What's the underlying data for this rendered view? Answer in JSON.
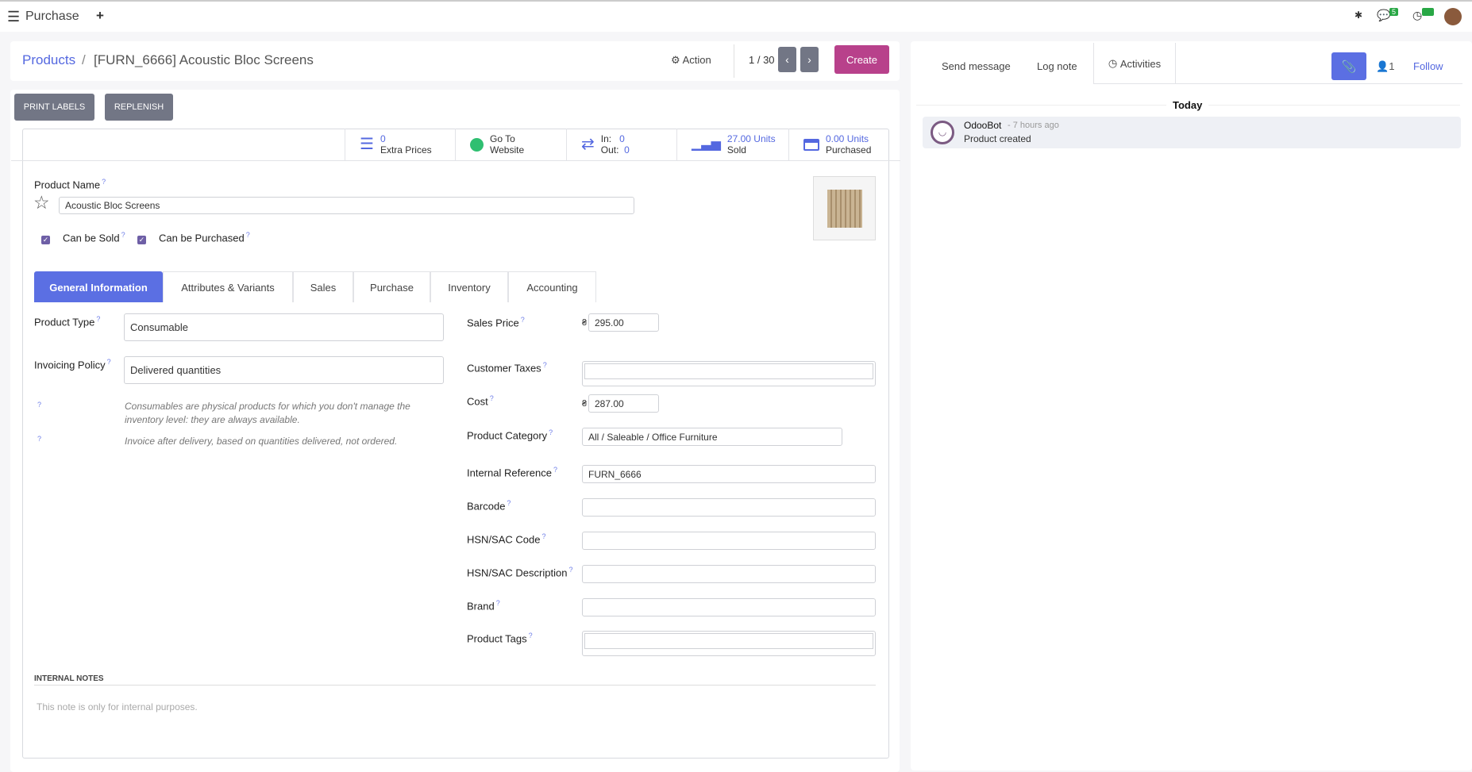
{
  "topbar": {
    "app_title": "Purchase",
    "messages_count": "5",
    "activities_count": "0"
  },
  "breadcrumb": {
    "parent": "Products",
    "current": "[FURN_6666] Acoustic Bloc Screens"
  },
  "controls": {
    "action": "Action",
    "pager": "1 / 30",
    "create": "Create"
  },
  "buttons": {
    "print_labels": "PRINT LABELS",
    "replenish": "REPLENISH"
  },
  "stats": {
    "extra_prices": {
      "value": "0",
      "label": "Extra Prices"
    },
    "website": {
      "line1": "Go To",
      "line2": "Website"
    },
    "moves": {
      "in_label": "In:",
      "in": "0",
      "out_label": "Out:",
      "out": "0"
    },
    "sold": {
      "value": "27.00 Units",
      "label": "Sold"
    },
    "purchased": {
      "value": "0.00 Units",
      "label": "Purchased"
    }
  },
  "product": {
    "name_label": "Product Name",
    "name": "Acoustic Bloc Screens",
    "can_be_sold": "Can be Sold",
    "can_be_purchased": "Can be Purchased"
  },
  "tabs": [
    "General Information",
    "Attributes & Variants",
    "Sales",
    "Purchase",
    "Inventory",
    "Accounting"
  ],
  "left_fields": {
    "product_type_label": "Product Type",
    "product_type": "Consumable",
    "invoicing_policy_label": "Invoicing Policy",
    "invoicing_policy": "Delivered quantities",
    "help1": "Consumables are physical products for which you don't manage the inventory level: they are always available.",
    "help2": "Invoice after delivery, based on quantities delivered, not ordered."
  },
  "right_fields": {
    "currency": "₴",
    "sales_price_label": "Sales Price",
    "sales_price": "295.00",
    "customer_taxes_label": "Customer Taxes",
    "cost_label": "Cost",
    "cost": "287.00",
    "category_label": "Product Category",
    "category": "All / Saleable / Office Furniture",
    "internal_ref_label": "Internal Reference",
    "internal_ref": "FURN_6666",
    "barcode_label": "Barcode",
    "hsn_code_label": "HSN/SAC Code",
    "hsn_desc_label": "HSN/SAC Description",
    "brand_label": "Brand",
    "tags_label": "Product Tags"
  },
  "notes": {
    "title": "INTERNAL NOTES",
    "placeholder": "This note is only for internal purposes."
  },
  "chatter": {
    "send_message": "Send message",
    "log_note": "Log note",
    "activities": "Activities",
    "followers": "1",
    "follow": "Follow",
    "today": "Today",
    "message": {
      "author": "OdooBot",
      "time": "- 7 hours ago",
      "body": "Product created"
    }
  },
  "colors": {
    "primary": "#5b6fe3",
    "create": "#b8418b",
    "secondary": "#727685"
  }
}
